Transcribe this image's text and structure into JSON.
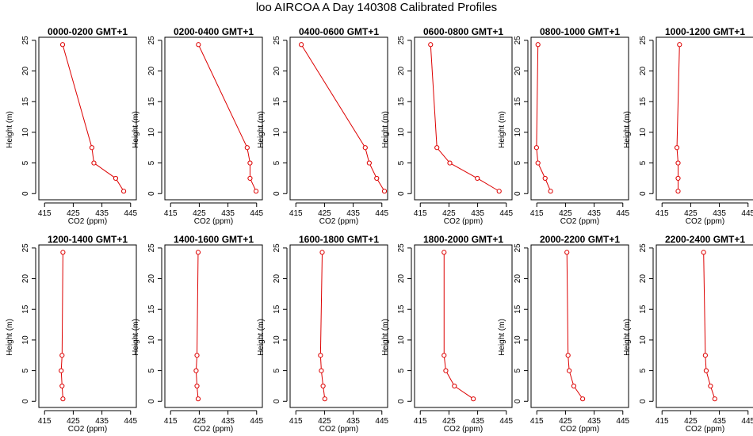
{
  "title": "loo AIRCOA A  Day 140308  Calibrated Profiles",
  "colors": {
    "series": "#dd0000",
    "axis": "#000000"
  },
  "chart_data": [
    {
      "type": "line",
      "title": "0000-0200 GMT+1",
      "xlabel": "CO2 (ppm)",
      "ylabel": "Height (m)",
      "xlim": [
        413,
        447
      ],
      "ylim": [
        -1,
        25.5
      ],
      "xticks": [
        415,
        425,
        435,
        445
      ],
      "yticks": [
        0,
        5,
        10,
        15,
        20,
        25
      ],
      "series": [
        {
          "points": [
            [
              421.3,
              24.3
            ],
            [
              431.5,
              7.5
            ],
            [
              432.2,
              5
            ],
            [
              439.8,
              2.5
            ],
            [
              442.6,
              0.4
            ]
          ]
        }
      ]
    },
    {
      "type": "line",
      "title": "0200-0400 GMT+1",
      "xlabel": "CO2 (ppm)",
      "ylabel": "Height (m)",
      "xlim": [
        413,
        447
      ],
      "ylim": [
        -1,
        25.5
      ],
      "xticks": [
        415,
        425,
        435,
        445
      ],
      "yticks": [
        0,
        5,
        10,
        15,
        20,
        25
      ],
      "series": [
        {
          "points": [
            [
              424.7,
              24.3
            ],
            [
              441.7,
              7.5
            ],
            [
              442.7,
              5
            ],
            [
              442.7,
              2.5
            ],
            [
              444.8,
              0.4
            ]
          ]
        }
      ]
    },
    {
      "type": "line",
      "title": "0400-0600 GMT+1",
      "xlabel": "CO2 (ppm)",
      "ylabel": "Height (m)",
      "xlim": [
        413,
        447
      ],
      "ylim": [
        -1,
        25.5
      ],
      "xticks": [
        415,
        425,
        435,
        445
      ],
      "yticks": [
        0,
        5,
        10,
        15,
        20,
        25
      ],
      "series": [
        {
          "points": [
            [
              416.9,
              24.3
            ],
            [
              439.2,
              7.5
            ],
            [
              440.6,
              5
            ],
            [
              443.2,
              2.5
            ],
            [
              445.9,
              0.4
            ]
          ]
        }
      ]
    },
    {
      "type": "line",
      "title": "0600-0800 GMT+1",
      "xlabel": "CO2 (ppm)",
      "ylabel": "Height (m)",
      "xlim": [
        413,
        447
      ],
      "ylim": [
        -1,
        25.5
      ],
      "xticks": [
        415,
        425,
        435,
        445
      ],
      "yticks": [
        0,
        5,
        10,
        15,
        20,
        25
      ],
      "series": [
        {
          "points": [
            [
              418.6,
              24.3
            ],
            [
              420.8,
              7.5
            ],
            [
              425.3,
              5
            ],
            [
              434.9,
              2.5
            ],
            [
              442.5,
              0.4
            ]
          ]
        }
      ]
    },
    {
      "type": "line",
      "title": "0800-1000 GMT+1",
      "xlabel": "CO2 (ppm)",
      "ylabel": "Height (m)",
      "xlim": [
        413,
        447
      ],
      "ylim": [
        -1,
        25.5
      ],
      "xticks": [
        415,
        425,
        435,
        445
      ],
      "yticks": [
        0,
        5,
        10,
        15,
        20,
        25
      ],
      "series": [
        {
          "points": [
            [
              415.4,
              24.3
            ],
            [
              414.9,
              7.5
            ],
            [
              415.4,
              5
            ],
            [
              417.9,
              2.5
            ],
            [
              419.8,
              0.4
            ]
          ]
        }
      ]
    },
    {
      "type": "line",
      "title": "1000-1200 GMT+1",
      "xlabel": "CO2 (ppm)",
      "ylabel": "Height (m)",
      "xlim": [
        413,
        447
      ],
      "ylim": [
        -1,
        25.5
      ],
      "xticks": [
        415,
        425,
        435,
        445
      ],
      "yticks": [
        0,
        5,
        10,
        15,
        20,
        25
      ],
      "series": [
        {
          "points": [
            [
              421.1,
              24.3
            ],
            [
              420.2,
              7.5
            ],
            [
              420.6,
              5
            ],
            [
              420.6,
              2.5
            ],
            [
              420.6,
              0.4
            ]
          ]
        }
      ]
    },
    {
      "type": "line",
      "title": "1200-1400 GMT+1",
      "xlabel": "CO2 (ppm)",
      "ylabel": "Height (m)",
      "xlim": [
        413,
        447
      ],
      "ylim": [
        -1,
        25.5
      ],
      "xticks": [
        415,
        425,
        435,
        445
      ],
      "yticks": [
        0,
        5,
        10,
        15,
        20,
        25
      ],
      "series": [
        {
          "points": [
            [
              421.4,
              24.3
            ],
            [
              421.1,
              7.5
            ],
            [
              420.8,
              5
            ],
            [
              421.1,
              2.5
            ],
            [
              421.4,
              0.4
            ]
          ]
        }
      ]
    },
    {
      "type": "line",
      "title": "1400-1600 GMT+1",
      "xlabel": "CO2 (ppm)",
      "ylabel": "Height (m)",
      "xlim": [
        413,
        447
      ],
      "ylim": [
        -1,
        25.5
      ],
      "xticks": [
        415,
        425,
        435,
        445
      ],
      "yticks": [
        0,
        5,
        10,
        15,
        20,
        25
      ],
      "series": [
        {
          "points": [
            [
              424.6,
              24.3
            ],
            [
              424.2,
              7.5
            ],
            [
              423.9,
              5
            ],
            [
              424.2,
              2.5
            ],
            [
              424.6,
              0.4
            ]
          ]
        }
      ]
    },
    {
      "type": "line",
      "title": "1600-1800 GMT+1",
      "xlabel": "CO2 (ppm)",
      "ylabel": "Height (m)",
      "xlim": [
        413,
        447
      ],
      "ylim": [
        -1,
        25.5
      ],
      "xticks": [
        415,
        425,
        435,
        445
      ],
      "yticks": [
        0,
        5,
        10,
        15,
        20,
        25
      ],
      "series": [
        {
          "points": [
            [
              424.2,
              24.3
            ],
            [
              423.6,
              7.5
            ],
            [
              423.9,
              5
            ],
            [
              424.5,
              2.5
            ],
            [
              425.1,
              0.4
            ]
          ]
        }
      ]
    },
    {
      "type": "line",
      "title": "1800-2000 GMT+1",
      "xlabel": "CO2 (ppm)",
      "ylabel": "Height (m)",
      "xlim": [
        413,
        447
      ],
      "ylim": [
        -1,
        25.5
      ],
      "xticks": [
        415,
        425,
        435,
        445
      ],
      "yticks": [
        0,
        5,
        10,
        15,
        20,
        25
      ],
      "series": [
        {
          "points": [
            [
              423.3,
              24.3
            ],
            [
              423.3,
              7.5
            ],
            [
              423.9,
              5
            ],
            [
              426.9,
              2.5
            ],
            [
              433.5,
              0.4
            ]
          ]
        }
      ]
    },
    {
      "type": "line",
      "title": "2000-2200 GMT+1",
      "xlabel": "CO2 (ppm)",
      "ylabel": "Height (m)",
      "xlim": [
        413,
        447
      ],
      "ylim": [
        -1,
        25.5
      ],
      "xticks": [
        415,
        425,
        435,
        445
      ],
      "yticks": [
        0,
        5,
        10,
        15,
        20,
        25
      ],
      "series": [
        {
          "points": [
            [
              425.5,
              24.3
            ],
            [
              425.9,
              7.5
            ],
            [
              426.3,
              5
            ],
            [
              427.9,
              2.5
            ],
            [
              431.0,
              0.4
            ]
          ]
        }
      ]
    },
    {
      "type": "line",
      "title": "2200-2400 GMT+1",
      "xlabel": "CO2 (ppm)",
      "ylabel": "Height (m)",
      "xlim": [
        413,
        447
      ],
      "ylim": [
        -1,
        25.5
      ],
      "xticks": [
        415,
        425,
        435,
        445
      ],
      "yticks": [
        0,
        5,
        10,
        15,
        20,
        25
      ],
      "series": [
        {
          "points": [
            [
              429.5,
              24.3
            ],
            [
              430.1,
              7.5
            ],
            [
              430.4,
              5
            ],
            [
              431.9,
              2.5
            ],
            [
              433.4,
              0.4
            ]
          ]
        }
      ]
    }
  ]
}
